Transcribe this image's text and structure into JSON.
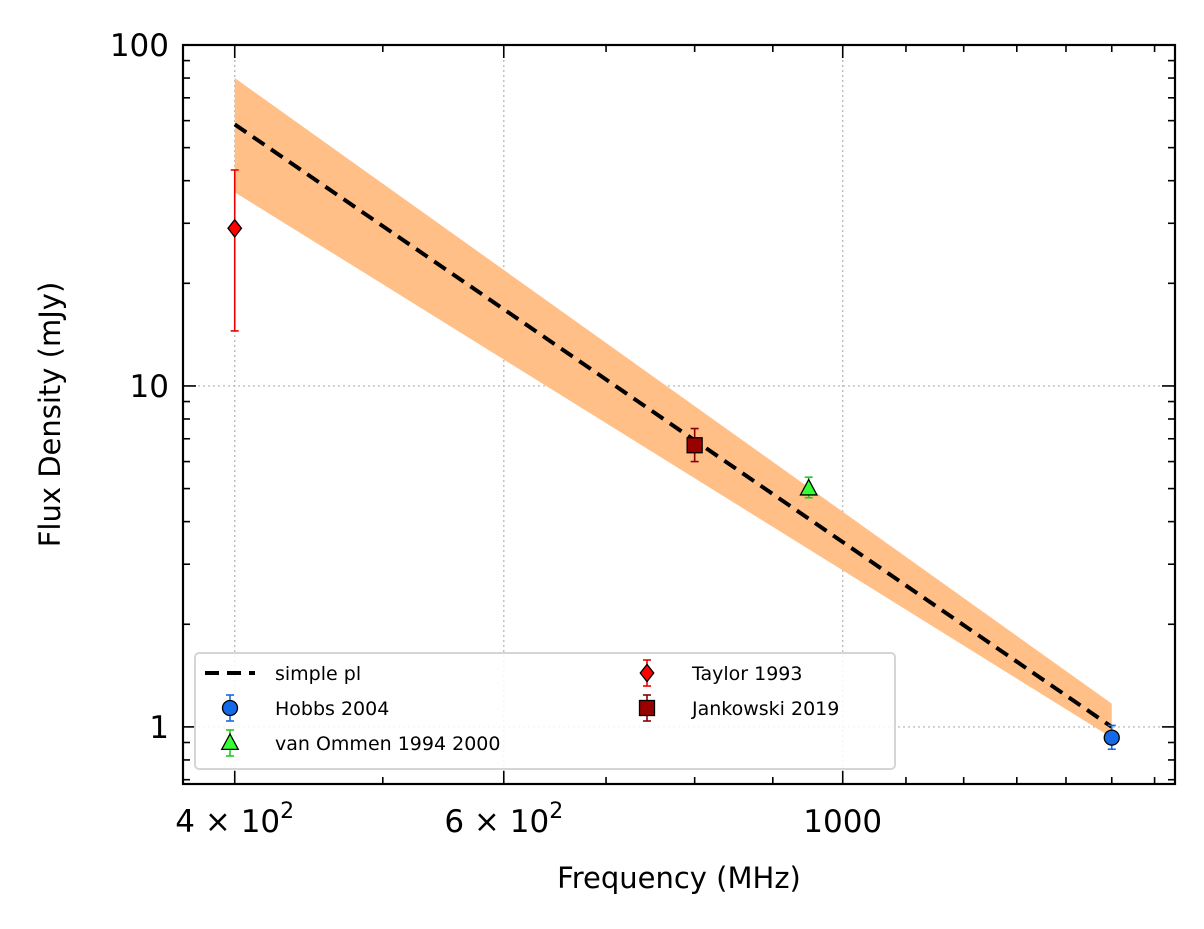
{
  "chart_data": {
    "type": "scatter",
    "xlabel": "Frequency (MHz)",
    "ylabel": "Flux Density (mJy)",
    "xscale": "log",
    "yscale": "log",
    "xlim": [
      370,
      1650
    ],
    "ylim": [
      0.68,
      100
    ],
    "xticks": [
      {
        "value": 400,
        "label": "4 × 10",
        "exp": "2"
      },
      {
        "value": 600,
        "label": "6 × 10",
        "exp": "2"
      },
      {
        "value": 1000,
        "label": "1000",
        "exp": ""
      }
    ],
    "yticks": [
      {
        "value": 1,
        "label": "1"
      },
      {
        "value": 10,
        "label": "10"
      },
      {
        "value": 100,
        "label": "100"
      }
    ],
    "grid": true,
    "legend_position": "lower-left",
    "fit": {
      "name": "simple pl",
      "color": "#000000",
      "x": [
        400,
        1500
      ],
      "y": [
        58.5,
        1.0
      ],
      "band_lower": [
        37,
        0.93
      ],
      "band_upper": [
        80,
        1.17
      ],
      "band_color": "#ffbf87"
    },
    "series": [
      {
        "name": "Hobbs 2004",
        "marker": "circle",
        "color": "#1469e6",
        "err_color": "#1469e6",
        "points": [
          {
            "x": 1500,
            "y": 0.93,
            "yerr_low": 0.86,
            "yerr_high": 1.01
          }
        ]
      },
      {
        "name": "van Ommen 1994 2000",
        "marker": "triangle",
        "color": "#33ff33",
        "err_color": "#22cc22",
        "points": [
          {
            "x": 950,
            "y": 5.0,
            "yerr_low": 4.7,
            "yerr_high": 5.4
          }
        ]
      },
      {
        "name": "Taylor 1993",
        "marker": "diamond",
        "color": "#ff0000",
        "err_color": "#ee0000",
        "points": [
          {
            "x": 400,
            "y": 29,
            "yerr_low": 14.5,
            "yerr_high": 43
          }
        ]
      },
      {
        "name": "Jankowski 2019",
        "marker": "square",
        "color": "#990000",
        "err_color": "#880000",
        "points": [
          {
            "x": 800,
            "y": 6.7,
            "yerr_low": 6.0,
            "yerr_high": 7.5
          }
        ]
      }
    ]
  }
}
